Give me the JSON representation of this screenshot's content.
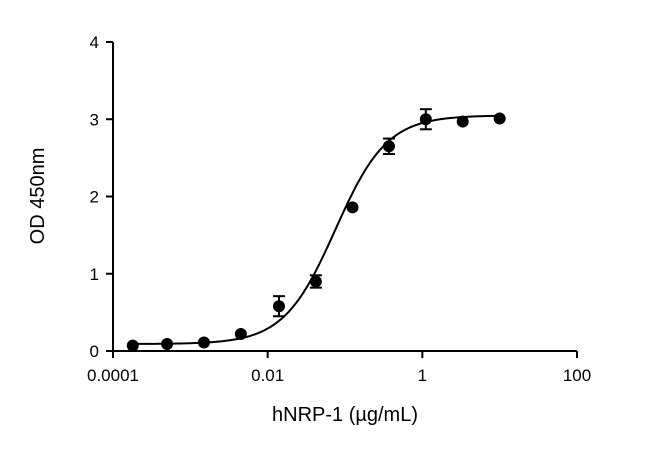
{
  "chart_data": {
    "type": "scatter",
    "title": "",
    "xlabel": "hNRP-1 (µg/mL)",
    "ylabel": "OD 450nm",
    "xscale": "log",
    "xlim": [
      0.0001,
      100
    ],
    "ylim": [
      0,
      4
    ],
    "x_ticks": [
      0.0001,
      0.01,
      1,
      100
    ],
    "x_tick_labels": [
      "0.0001",
      "0.01",
      "1",
      "100"
    ],
    "y_ticks": [
      0,
      1,
      2,
      3,
      4
    ],
    "y_tick_labels": [
      "0",
      "1",
      "2",
      "3",
      "4"
    ],
    "grid": false,
    "legend": "none",
    "marker_color": "#000000",
    "points": [
      {
        "x": 0.00018,
        "y": 0.07,
        "err": 0.0
      },
      {
        "x": 0.0005,
        "y": 0.09,
        "err": 0.0
      },
      {
        "x": 0.0015,
        "y": 0.11,
        "err": 0.0
      },
      {
        "x": 0.0045,
        "y": 0.22,
        "err": 0.0
      },
      {
        "x": 0.014,
        "y": 0.58,
        "err": 0.13
      },
      {
        "x": 0.042,
        "y": 0.9,
        "err": 0.08
      },
      {
        "x": 0.125,
        "y": 1.86,
        "err": 0.0
      },
      {
        "x": 0.37,
        "y": 2.65,
        "err": 0.1
      },
      {
        "x": 1.11,
        "y": 3.0,
        "err": 0.13
      },
      {
        "x": 3.33,
        "y": 2.97,
        "err": 0.0
      },
      {
        "x": 10.0,
        "y": 3.01,
        "err": 0.0
      }
    ],
    "fit": {
      "model": "4PL",
      "bottom": 0.09,
      "top": 3.05,
      "ec50": 0.075,
      "hill": 1.3,
      "x_range": [
        0.00018,
        10.0
      ]
    }
  }
}
